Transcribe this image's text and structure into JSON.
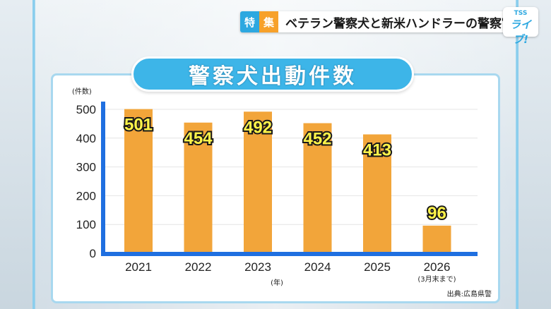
{
  "banner": {
    "tag1": "特",
    "tag2": "集",
    "headline": "ベテラン警察犬と新米ハンドラーの警察官"
  },
  "logo": {
    "top": "TSS",
    "bottom": "ライブ!"
  },
  "chart_data": {
    "type": "bar",
    "title": "警察犬出動件数",
    "ylabel": "(件数)",
    "xlabel": "(年)",
    "categories": [
      "2021",
      "2022",
      "2023",
      "2024",
      "2025",
      "2026"
    ],
    "category_notes": [
      "",
      "",
      "",
      "",
      "",
      "(3月末まで)"
    ],
    "values": [
      501,
      454,
      492,
      452,
      413,
      96
    ],
    "ylim": [
      0,
      500
    ],
    "yticks": [
      0,
      100,
      200,
      300,
      400,
      500
    ],
    "grid": true,
    "source": "出典:広島県警",
    "colors": {
      "bar": "#f2a53a",
      "axis": "#1f6fe0",
      "label_fill": "#fff44a"
    }
  }
}
